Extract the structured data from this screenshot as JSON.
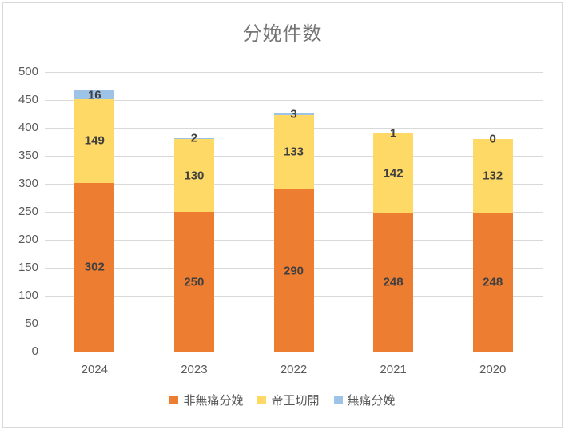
{
  "chart_data": {
    "type": "bar",
    "stacked": true,
    "title": "分娩件数",
    "categories": [
      "2024",
      "2023",
      "2022",
      "2021",
      "2020"
    ],
    "series": [
      {
        "name": "非無痛分娩",
        "color": "#ED7D31",
        "values": [
          302,
          250,
          290,
          248,
          248
        ]
      },
      {
        "name": "帝王切開",
        "color": "#FFD966",
        "values": [
          149,
          130,
          133,
          142,
          132
        ]
      },
      {
        "name": "無痛分娩",
        "color": "#9DC3E6",
        "values": [
          16,
          2,
          3,
          1,
          0
        ]
      }
    ],
    "totals": [
      467,
      382,
      426,
      391,
      380
    ],
    "ylim": [
      0,
      500
    ],
    "ytick_step": 50,
    "ytick_labels": [
      "0",
      "50",
      "100",
      "150",
      "200",
      "250",
      "300",
      "350",
      "400",
      "450",
      "500"
    ],
    "grid": true,
    "data_labels": true,
    "legend_position": "bottom",
    "colors": {
      "title_text": "#757575",
      "axis_text": "#595959",
      "data_label_text": "#404040",
      "gridline": "#D9D9D9",
      "axis_line": "#BFBFBF",
      "chart_border": "#D9D9D9",
      "background": "#FFFFFF"
    }
  }
}
